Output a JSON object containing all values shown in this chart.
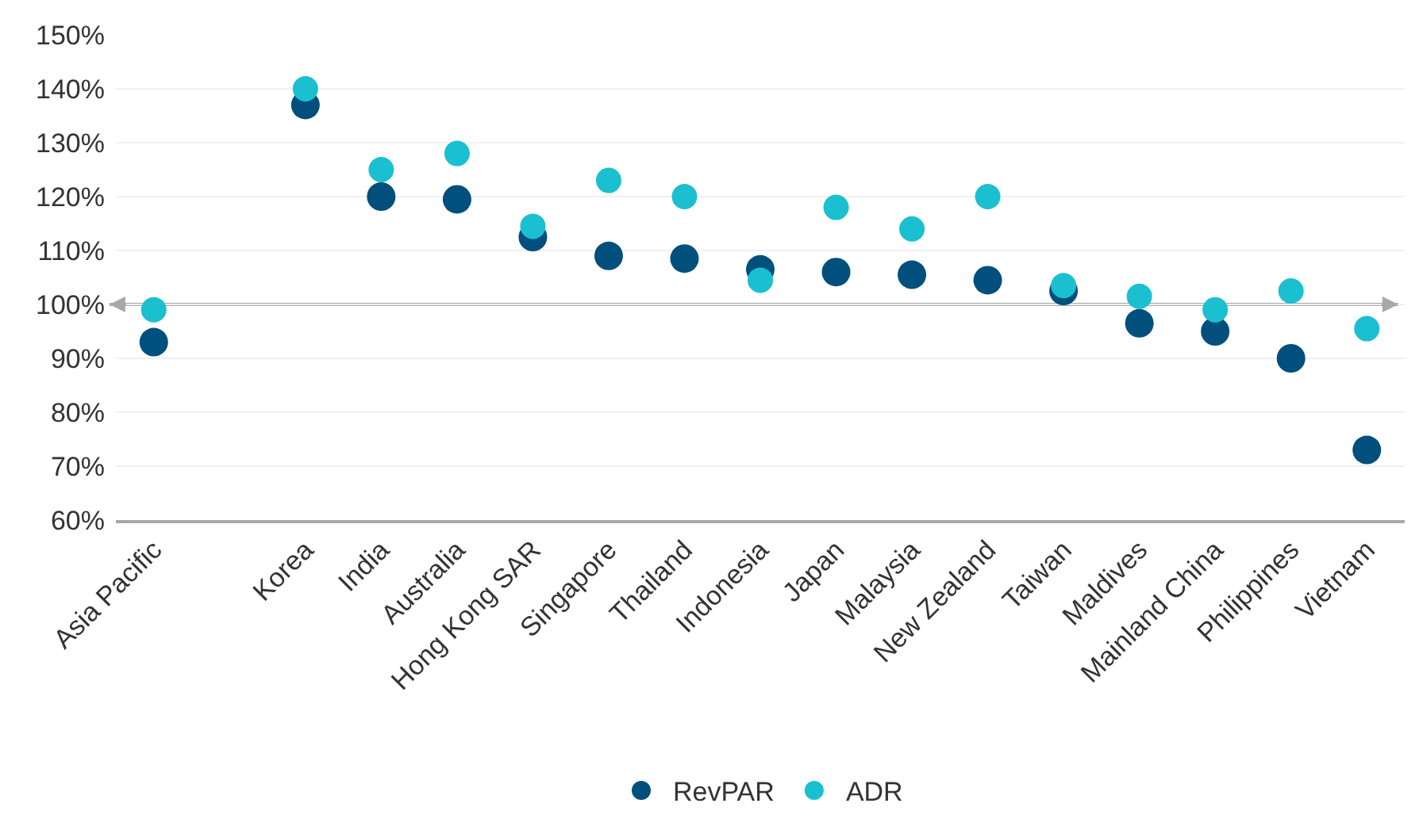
{
  "chart_data": {
    "type": "scatter",
    "categories": [
      "Asia Pacific",
      null,
      "Korea",
      "India",
      "Australia",
      "Hong Kong SAR",
      "Singapore",
      "Thailand",
      "Indonesia",
      "Japan",
      "Malaysia",
      "New Zealand",
      "Taiwan",
      "Maldives",
      "Mainland China",
      "Philippines",
      "Vietnam"
    ],
    "series": [
      {
        "name": "RevPAR",
        "color": "#004f7c",
        "values": [
          93,
          null,
          137,
          120,
          119.5,
          112.5,
          109,
          108.5,
          106.5,
          106,
          105.5,
          104.5,
          102.5,
          96.5,
          95,
          90,
          73
        ]
      },
      {
        "name": "ADR",
        "color": "#1ac0d0",
        "values": [
          99,
          null,
          140,
          125,
          128,
          114.5,
          123,
          120,
          104.5,
          118,
          114,
          120,
          103.5,
          101.5,
          99,
          102.5,
          95.5
        ]
      }
    ],
    "ylim": [
      60,
      150
    ],
    "yticks": [
      {
        "value": 60,
        "label": "60%"
      },
      {
        "value": 70,
        "label": "70%"
      },
      {
        "value": 80,
        "label": "80%"
      },
      {
        "value": 90,
        "label": "90%"
      },
      {
        "value": 100,
        "label": "100%"
      },
      {
        "value": 110,
        "label": "110%"
      },
      {
        "value": 120,
        "label": "120%"
      },
      {
        "value": 130,
        "label": "130%"
      },
      {
        "value": 140,
        "label": "140%"
      },
      {
        "value": 150,
        "label": "150%"
      }
    ],
    "grid": "y",
    "legend": "bottom",
    "marker": "circle",
    "ref_lines": [
      {
        "axis": "y",
        "value": 100,
        "color": "#a6a8ab"
      }
    ]
  }
}
